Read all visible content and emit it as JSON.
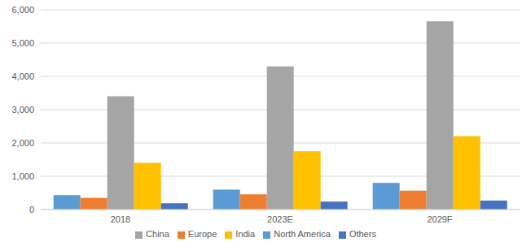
{
  "chart_data": {
    "type": "bar",
    "categories": [
      "2018",
      "2023E",
      "2029F"
    ],
    "series": [
      {
        "name": "North America",
        "color": "#5B9BD5",
        "values": [
          430,
          600,
          800
        ]
      },
      {
        "name": "Europe",
        "color": "#ED7D31",
        "values": [
          350,
          460,
          570
        ]
      },
      {
        "name": "China",
        "color": "#A5A5A5",
        "values": [
          3400,
          4300,
          5650
        ]
      },
      {
        "name": "India",
        "color": "#FFC000",
        "values": [
          1400,
          1750,
          2200
        ]
      },
      {
        "name": "Others",
        "color": "#4472C4",
        "values": [
          190,
          240,
          270
        ]
      }
    ],
    "ylim": [
      0,
      6000
    ],
    "yticks": [
      0,
      {
        "value": 1000,
        "label": "1,000"
      },
      {
        "value": 2000,
        "label": "2,000"
      },
      {
        "value": 3000,
        "label": "3,000"
      },
      {
        "value": 4000,
        "label": "4,000"
      },
      {
        "value": 5000,
        "label": "5,000"
      },
      {
        "value": 6000,
        "label": "6,000"
      }
    ],
    "grid": true,
    "legend": "bottom"
  }
}
